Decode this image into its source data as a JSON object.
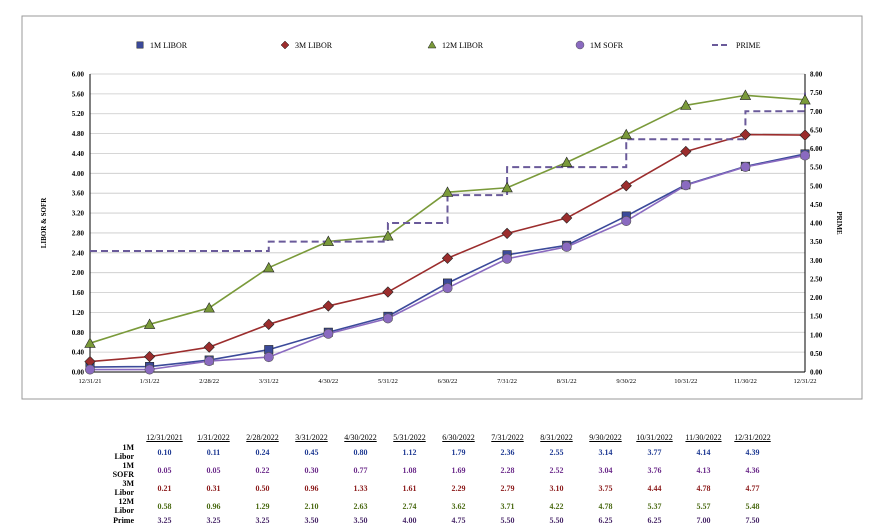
{
  "chart_data": {
    "type": "line",
    "x": [
      "12/31/21",
      "1/31/22",
      "2/28/22",
      "3/31/22",
      "4/30/22",
      "5/31/22",
      "6/30/22",
      "7/31/22",
      "8/31/22",
      "9/30/22",
      "10/31/22",
      "11/30/22",
      "12/31/22"
    ],
    "ylabel": "LIBOR & SOFR",
    "y2label": "PRIME",
    "ylim": [
      0,
      6
    ],
    "y2lim": [
      0,
      8
    ],
    "yticks": [
      "0.00",
      "0.40",
      "0.80",
      "1.20",
      "1.60",
      "2.00",
      "2.40",
      "2.80",
      "3.20",
      "3.60",
      "4.00",
      "4.40",
      "4.80",
      "5.20",
      "5.60",
      "6.00"
    ],
    "y2ticks": [
      "0.00",
      "0.50",
      "1.00",
      "1.50",
      "2.00",
      "2.50",
      "3.00",
      "3.50",
      "4.00",
      "4.50",
      "5.00",
      "5.50",
      "6.00",
      "6.50",
      "7.00",
      "7.50",
      "8.00"
    ],
    "grid": true,
    "legend_position": "top",
    "series": [
      {
        "name": "1M LIBOR",
        "axis": "left",
        "color": "#3b4a9a",
        "marker": "square",
        "values": [
          0.1,
          0.11,
          0.24,
          0.45,
          0.8,
          1.12,
          1.79,
          2.36,
          2.55,
          3.14,
          3.77,
          4.14,
          4.39
        ]
      },
      {
        "name": "3M LIBOR",
        "axis": "left",
        "color": "#9b2d2d",
        "marker": "diamond",
        "values": [
          0.21,
          0.31,
          0.5,
          0.96,
          1.33,
          1.61,
          2.29,
          2.79,
          3.1,
          3.75,
          4.44,
          4.78,
          4.77
        ]
      },
      {
        "name": "12M LIBOR",
        "axis": "left",
        "color": "#7a9a3a",
        "marker": "triangle",
        "values": [
          0.58,
          0.96,
          1.29,
          2.1,
          2.63,
          2.74,
          3.62,
          3.71,
          4.22,
          4.78,
          5.37,
          5.57,
          5.48
        ]
      },
      {
        "name": "1M SOFR",
        "axis": "left",
        "color": "#8a6ac0",
        "marker": "circle",
        "values": [
          0.05,
          0.05,
          0.22,
          0.3,
          0.77,
          1.08,
          1.69,
          2.28,
          2.52,
          3.04,
          3.76,
          4.13,
          4.36
        ]
      },
      {
        "name": "PRIME",
        "axis": "right",
        "color": "#6a5a9a",
        "marker": "none",
        "dashed": true,
        "values": [
          3.25,
          3.25,
          3.25,
          3.5,
          3.5,
          4.0,
          4.75,
          5.5,
          5.5,
          6.25,
          6.25,
          7.0,
          7.5
        ]
      }
    ]
  },
  "legend": [
    {
      "label": "1M LIBOR"
    },
    {
      "label": "3M LIBOR"
    },
    {
      "label": "12M LIBOR"
    },
    {
      "label": "1M SOFR"
    },
    {
      "label": "PRIME"
    }
  ],
  "table": {
    "headers": [
      "12/31/2021",
      "1/31/2022",
      "2/28/2022",
      "3/31/2022",
      "4/30/2022",
      "5/31/2022",
      "6/30/2022",
      "7/31/2022",
      "8/31/2022",
      "9/30/2022",
      "10/31/2022",
      "11/30/2022",
      "12/31/2022"
    ],
    "rows": [
      {
        "label": "1M Libor",
        "cls": "c-libor1",
        "values": [
          "0.10",
          "0.11",
          "0.24",
          "0.45",
          "0.80",
          "1.12",
          "1.79",
          "2.36",
          "2.55",
          "3.14",
          "3.77",
          "4.14",
          "4.39"
        ]
      },
      {
        "label": "1M SOFR",
        "cls": "c-sofr",
        "values": [
          "0.05",
          "0.05",
          "0.22",
          "0.30",
          "0.77",
          "1.08",
          "1.69",
          "2.28",
          "2.52",
          "3.04",
          "3.76",
          "4.13",
          "4.36"
        ]
      },
      {
        "label": "3M Libor",
        "cls": "c-libor3",
        "values": [
          "0.21",
          "0.31",
          "0.50",
          "0.96",
          "1.33",
          "1.61",
          "2.29",
          "2.79",
          "3.10",
          "3.75",
          "4.44",
          "4.78",
          "4.77"
        ]
      },
      {
        "label": "12M Libor",
        "cls": "c-libor12",
        "values": [
          "0.58",
          "0.96",
          "1.29",
          "2.10",
          "2.63",
          "2.74",
          "3.62",
          "3.71",
          "4.22",
          "4.78",
          "5.37",
          "5.57",
          "5.48"
        ]
      },
      {
        "label": "Prime",
        "cls": "c-prime",
        "values": [
          "3.25",
          "3.25",
          "3.25",
          "3.50",
          "3.50",
          "4.00",
          "4.75",
          "5.50",
          "5.50",
          "6.25",
          "6.25",
          "7.00",
          "7.50"
        ]
      }
    ]
  }
}
